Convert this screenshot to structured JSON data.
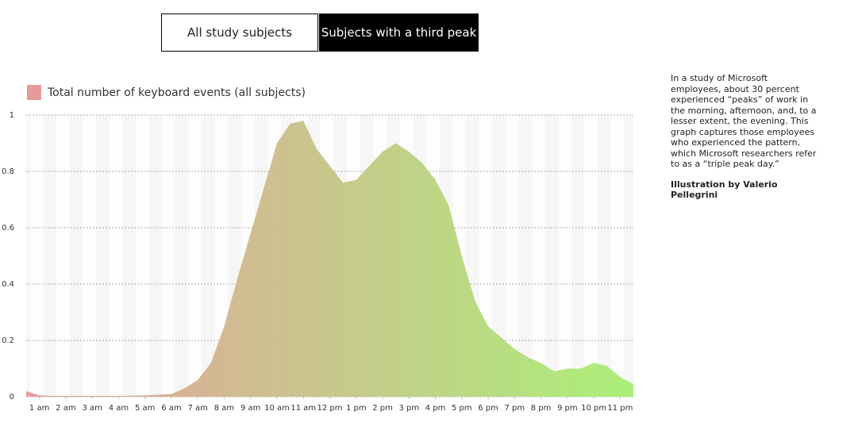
{
  "tabs": [
    "All study subjects",
    "Subjects with a third peak"
  ],
  "chart_data": {
    "type": "area",
    "series": [
      {
        "name": "Total number of keyboard events (all subjects)",
        "color": "#e59a9a",
        "x": [
          0.5,
          1,
          1.5,
          2,
          2.5,
          3,
          3.5,
          4,
          4.5,
          5,
          5.5,
          6,
          6.5,
          7,
          7.5,
          8,
          8.5,
          9,
          9.5,
          10,
          10.5,
          11,
          11.5,
          12,
          12.5,
          13,
          13.5,
          14,
          14.5,
          15,
          15.5,
          16,
          16.5,
          17,
          17.5,
          18,
          18.5,
          19,
          19.5,
          20,
          20.5,
          21,
          21.5,
          22,
          22.5,
          23,
          23.5
        ],
        "values": [
          0.02,
          0.005,
          0.003,
          0.003,
          0.003,
          0.003,
          0.003,
          0.003,
          0.004,
          0.005,
          0.007,
          0.01,
          0.03,
          0.06,
          0.12,
          0.25,
          0.42,
          0.58,
          0.74,
          0.9,
          0.97,
          0.98,
          0.88,
          0.82,
          0.76,
          0.77,
          0.82,
          0.87,
          0.9,
          0.87,
          0.83,
          0.77,
          0.68,
          0.5,
          0.34,
          0.25,
          0.21,
          0.17,
          0.14,
          0.12,
          0.09,
          0.1,
          0.1,
          0.12,
          0.11,
          0.07,
          0.045
        ]
      }
    ],
    "end_color": "#a6ef72",
    "xlim": [
      0.5,
      23.5
    ],
    "xticks": [
      {
        "value": 1,
        "label": "1 am"
      },
      {
        "value": 2,
        "label": "2 am"
      },
      {
        "value": 3,
        "label": "3 am"
      },
      {
        "value": 4,
        "label": "4 am"
      },
      {
        "value": 5,
        "label": "5 am"
      },
      {
        "value": 6,
        "label": "6 am"
      },
      {
        "value": 7,
        "label": "7 am"
      },
      {
        "value": 8,
        "label": "8 am"
      },
      {
        "value": 9,
        "label": "9 am"
      },
      {
        "value": 10,
        "label": "10 am"
      },
      {
        "value": 11,
        "label": "11 am"
      },
      {
        "value": 12,
        "label": "12 pm"
      },
      {
        "value": 13,
        "label": "1 pm"
      },
      {
        "value": 14,
        "label": "2 pm"
      },
      {
        "value": 15,
        "label": "3 pm"
      },
      {
        "value": 16,
        "label": "4 pm"
      },
      {
        "value": 17,
        "label": "5 pm"
      },
      {
        "value": 18,
        "label": "6 pm"
      },
      {
        "value": 19,
        "label": "7 pm"
      },
      {
        "value": 20,
        "label": "8 pm"
      },
      {
        "value": 21,
        "label": "9 pm"
      },
      {
        "value": 22,
        "label": "10 pm"
      },
      {
        "value": 23,
        "label": "11 pm"
      }
    ],
    "ylim": [
      0,
      1
    ],
    "yticks": [
      0,
      0.2,
      0.4,
      0.6,
      0.8,
      1
    ],
    "grid": true,
    "legend": "top-left"
  },
  "sidebar": {
    "description": "In a study of Microsoft employees, about 30 percent experienced “peaks” of work in the morning, afternoon, and, to a lesser extent, the evening. This graph captures those employees who experienced the pattern, which Microsoft researchers refer to as a “triple peak day.”",
    "credit": "Illustration by Valerio Pellegrini"
  }
}
